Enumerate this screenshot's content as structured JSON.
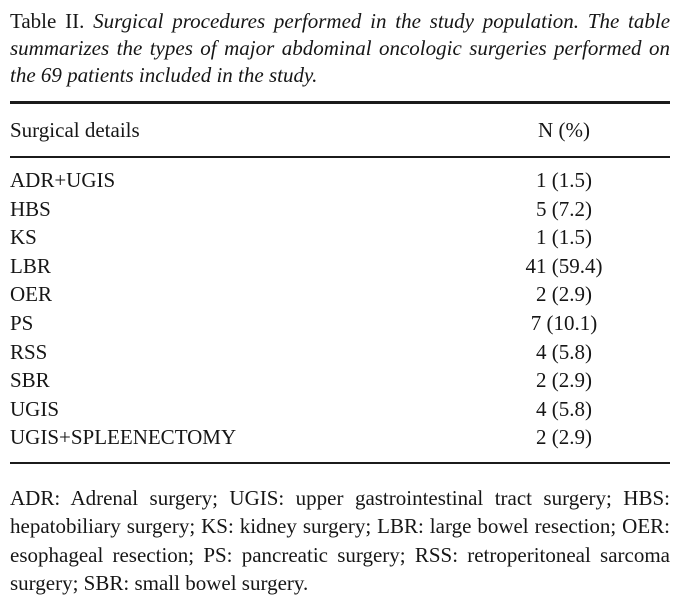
{
  "caption": {
    "label": "Table II.",
    "text": "Surgical procedures performed in the study population. The table summarizes the types of major abdominal oncologic surgeries performed on the 69 patients included in the study."
  },
  "table": {
    "columns": [
      "Surgical details",
      "N (%)"
    ],
    "rows": [
      {
        "procedure": "ADR+UGIS",
        "n_pct": "1 (1.5)"
      },
      {
        "procedure": "HBS",
        "n_pct": "5 (7.2)"
      },
      {
        "procedure": "KS",
        "n_pct": "1 (1.5)"
      },
      {
        "procedure": "LBR",
        "n_pct": "41 (59.4)"
      },
      {
        "procedure": "OER",
        "n_pct": "2 (2.9)"
      },
      {
        "procedure": "PS",
        "n_pct": "7 (10.1)"
      },
      {
        "procedure": "RSS",
        "n_pct": "4 (5.8)"
      },
      {
        "procedure": "SBR",
        "n_pct": "2 (2.9)"
      },
      {
        "procedure": "UGIS",
        "n_pct": "4 (5.8)"
      },
      {
        "procedure": "UGIS+SPLEENECTOMY",
        "n_pct": "2 (2.9)"
      }
    ]
  },
  "footnote": "ADR: Adrenal surgery; UGIS: upper gastrointestinal tract surgery; HBS: hepatobiliary surgery; KS: kidney surgery; LBR: large bowel resection; OER: esophageal resection; PS: pancreatic surgery; RSS: retroperitoneal sarcoma surgery; SBR: small bowel surgery.",
  "colors": {
    "text": "#161616",
    "background": "#ffffff",
    "rule": "#1b1b1b"
  }
}
